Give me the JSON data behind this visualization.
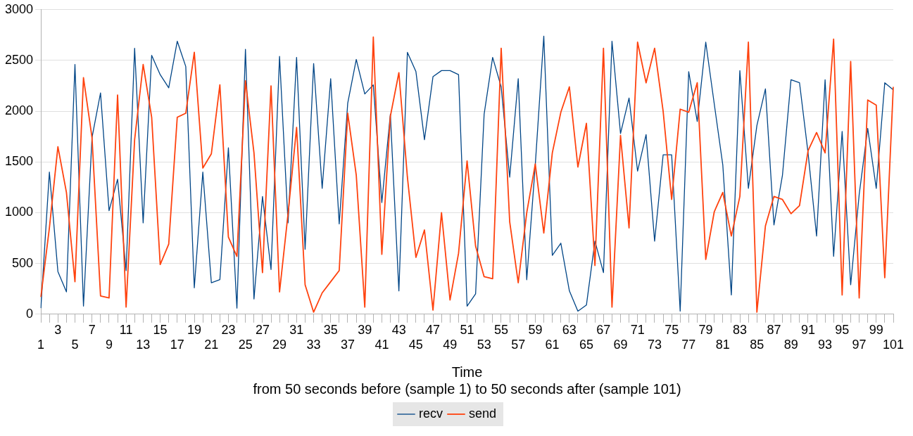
{
  "chart_data": {
    "type": "line",
    "xlabel": "Time",
    "annotations": [
      "from 50 seconds before (sample 1) to 50 seconds after (sample 101)"
    ],
    "categories": [
      "1",
      null,
      "3",
      null,
      "5",
      null,
      "7",
      null,
      "9",
      null,
      "11",
      null,
      "13",
      null,
      "15",
      null,
      "17",
      null,
      "19",
      null,
      "21",
      null,
      "23",
      null,
      "25",
      null,
      "27",
      null,
      "29",
      null,
      "31",
      null,
      "33",
      null,
      "35",
      null,
      "37",
      null,
      "39",
      null,
      "41",
      null,
      "43",
      null,
      "45",
      null,
      "47",
      null,
      "49",
      null,
      "51",
      null,
      "53",
      null,
      "55",
      null,
      "57",
      null,
      "59",
      null,
      "61",
      null,
      "63",
      null,
      "65",
      null,
      "67",
      null,
      "69",
      null,
      "71",
      null,
      "73",
      null,
      "75",
      null,
      "77",
      null,
      "79",
      null,
      "81",
      null,
      "83",
      null,
      "85",
      null,
      "87",
      null,
      "89",
      null,
      "91",
      null,
      "93",
      null,
      "95",
      null,
      "97",
      null,
      "99",
      null,
      "101"
    ],
    "series": [
      {
        "name": "recv",
        "color": "#004586",
        "values": [
          60,
          1400,
          420,
          220,
          2460,
          80,
          1740,
          2180,
          1020,
          1330,
          430,
          2620,
          900,
          2550,
          2360,
          2230,
          2690,
          2440,
          260,
          1400,
          310,
          340,
          1640,
          60,
          2610,
          150,
          1160,
          440,
          2540,
          900,
          2530,
          640,
          2470,
          1240,
          2320,
          890,
          2080,
          2510,
          2170,
          2260,
          1100,
          1970,
          230,
          2580,
          2390,
          1720,
          2340,
          2400,
          2400,
          2360,
          80,
          200,
          1970,
          2530,
          2240,
          1350,
          2320,
          340,
          1470,
          2740,
          580,
          700,
          230,
          30,
          90,
          720,
          410,
          2690,
          1780,
          2130,
          1410,
          1770,
          720,
          1570,
          1570,
          30,
          2390,
          1900,
          2680,
          2070,
          1470,
          190,
          2400,
          1240,
          1860,
          2220,
          880,
          1370,
          2310,
          2280,
          1590,
          770,
          2310,
          570,
          1800,
          290,
          1180,
          1830,
          1240,
          2280,
          2210
        ]
      },
      {
        "name": "send",
        "color": "#ff420e",
        "values": [
          170,
          850,
          1650,
          1200,
          320,
          2330,
          1740,
          180,
          160,
          2160,
          70,
          1720,
          2460,
          1940,
          490,
          690,
          1940,
          1980,
          2580,
          1440,
          1580,
          2260,
          760,
          570,
          2300,
          1590,
          410,
          2250,
          220,
          990,
          1840,
          290,
          20,
          210,
          320,
          430,
          1980,
          1370,
          70,
          2730,
          590,
          1950,
          2380,
          1350,
          560,
          830,
          40,
          1000,
          140,
          600,
          1510,
          670,
          370,
          350,
          2620,
          910,
          310,
          1000,
          1480,
          800,
          1590,
          1990,
          2240,
          1450,
          1880,
          480,
          2620,
          70,
          1760,
          850,
          2680,
          2280,
          2620,
          2000,
          1130,
          2020,
          1990,
          2280,
          540,
          1010,
          1200,
          770,
          1160,
          2680,
          20,
          870,
          1160,
          1130,
          990,
          1070,
          1610,
          1790,
          1590,
          2710,
          190,
          2490,
          160,
          2110,
          2060,
          360,
          2240
        ]
      }
    ],
    "ylim": [
      0,
      3000
    ],
    "yticks": [
      0,
      500,
      1000,
      1500,
      2000,
      2500,
      3000
    ],
    "grid": "y",
    "legend": "bottom",
    "marker": "none",
    "line_style": "solid"
  }
}
